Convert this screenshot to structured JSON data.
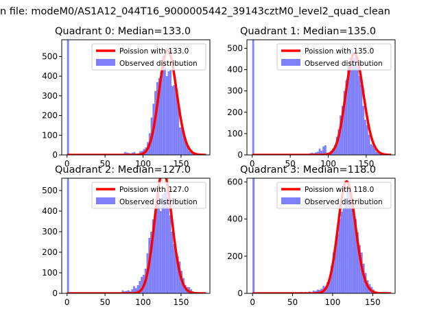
{
  "figure": {
    "suptitle": "n file: modeM0/AS1A12_044T16_9000005442_39143cztM0_level2_quad_clean"
  },
  "colors": {
    "observed": "#7f7ff7",
    "poisson": "#ff0000"
  },
  "chart_data": [
    {
      "type": "bar",
      "title": "Quadrant 0: Median=133.0",
      "median": 133.0,
      "xlim": [
        -7,
        188
      ],
      "ylim": [
        0,
        585
      ],
      "xticks": [
        0,
        50,
        100,
        150
      ],
      "yticks": [
        0,
        100,
        200,
        300,
        400,
        500
      ],
      "legend_position": "upper right",
      "series": [
        {
          "name": "Poission with 133.0",
          "kind": "line",
          "mean": 133.0
        },
        {
          "name": "Observed distribution",
          "kind": "histogram",
          "bins": [
            [
              0,
              2.5,
              585
            ],
            [
              75,
              77.5,
              15
            ],
            [
              77.5,
              80,
              12
            ],
            [
              80,
              82.5,
              10
            ],
            [
              82.5,
              85,
              8
            ],
            [
              85,
              87.5,
              12
            ],
            [
              87.5,
              90,
              15
            ],
            [
              90,
              92.5,
              5
            ],
            [
              92.5,
              95,
              8
            ],
            [
              95,
              97.5,
              18
            ],
            [
              97.5,
              100,
              20
            ],
            [
              100,
              102.5,
              30
            ],
            [
              102.5,
              105,
              38
            ],
            [
              105,
              107.5,
              65
            ],
            [
              107.5,
              110,
              110
            ],
            [
              110,
              112.5,
              190
            ],
            [
              112.5,
              115,
              260
            ],
            [
              115,
              117.5,
              325
            ],
            [
              117.5,
              120,
              370
            ],
            [
              120,
              122.5,
              390
            ],
            [
              122.5,
              125,
              420
            ],
            [
              125,
              127.5,
              505
            ],
            [
              127.5,
              130,
              470
            ],
            [
              130,
              132.5,
              400
            ],
            [
              132.5,
              135,
              425
            ],
            [
              135,
              137.5,
              430
            ],
            [
              137.5,
              140,
              350
            ],
            [
              140,
              142.5,
              355
            ],
            [
              142.5,
              145,
              340
            ],
            [
              145,
              147.5,
              250
            ],
            [
              147.5,
              150,
              140
            ],
            [
              150,
              152.5,
              150
            ],
            [
              152.5,
              155,
              100
            ],
            [
              155,
              157.5,
              75
            ],
            [
              157.5,
              160,
              45
            ],
            [
              160,
              162.5,
              20
            ],
            [
              162.5,
              165,
              15
            ],
            [
              165,
              167.5,
              10
            ],
            [
              167.5,
              170,
              8
            ],
            [
              170,
              172.5,
              5
            ]
          ]
        }
      ]
    },
    {
      "type": "bar",
      "title": "Quadrant 1: Median=135.0",
      "median": 135.0,
      "xlim": [
        -7,
        188
      ],
      "ylim": [
        0,
        540
      ],
      "xticks": [
        0,
        50,
        100,
        150
      ],
      "yticks": [
        0,
        100,
        200,
        300,
        400,
        500
      ],
      "legend_position": "upper right",
      "series": [
        {
          "name": "Poission with 135.0",
          "kind": "line",
          "mean": 135.0
        },
        {
          "name": "Observed distribution",
          "kind": "histogram",
          "bins": [
            [
              0,
              2.5,
              540
            ],
            [
              75,
              77.5,
              8
            ],
            [
              77.5,
              80,
              10
            ],
            [
              80,
              82.5,
              8
            ],
            [
              82.5,
              85,
              12
            ],
            [
              85,
              87.5,
              15
            ],
            [
              87.5,
              90,
              30
            ],
            [
              90,
              92.5,
              20
            ],
            [
              92.5,
              95,
              40
            ],
            [
              95,
              97.5,
              45
            ],
            [
              97.5,
              100,
              10
            ],
            [
              100,
              102.5,
              12
            ],
            [
              102.5,
              105,
              20
            ],
            [
              105,
              107.5,
              30
            ],
            [
              107.5,
              110,
              45
            ],
            [
              110,
              112.5,
              85
            ],
            [
              112.5,
              115,
              120
            ],
            [
              115,
              117.5,
              185
            ],
            [
              117.5,
              120,
              230
            ],
            [
              120,
              122.5,
              300
            ],
            [
              122.5,
              125,
              350
            ],
            [
              125,
              127.5,
              420
            ],
            [
              127.5,
              130,
              455
            ],
            [
              130,
              132.5,
              500
            ],
            [
              132.5,
              135,
              455
            ],
            [
              135,
              137.5,
              460
            ],
            [
              137.5,
              140,
              420
            ],
            [
              140,
              142.5,
              370
            ],
            [
              142.5,
              145,
              330
            ],
            [
              145,
              147.5,
              230
            ],
            [
              147.5,
              150,
              165
            ],
            [
              150,
              152.5,
              140
            ],
            [
              152.5,
              155,
              95
            ],
            [
              155,
              157.5,
              50
            ],
            [
              157.5,
              160,
              45
            ],
            [
              160,
              162.5,
              30
            ],
            [
              162.5,
              165,
              15
            ],
            [
              165,
              167.5,
              10
            ],
            [
              167.5,
              170,
              5
            ]
          ]
        }
      ]
    },
    {
      "type": "bar",
      "title": "Quadrant 2: Median=127.0",
      "median": 127.0,
      "xlim": [
        -7,
        188
      ],
      "ylim": [
        0,
        560
      ],
      "xticks": [
        0,
        50,
        100,
        150
      ],
      "yticks": [
        0,
        100,
        200,
        300,
        400,
        500
      ],
      "legend_position": "upper right",
      "series": [
        {
          "name": "Poission with 127.0",
          "kind": "line",
          "mean": 127.0
        },
        {
          "name": "Observed distribution",
          "kind": "histogram",
          "bins": [
            [
              0,
              2.5,
              560
            ],
            [
              72,
              74.5,
              15
            ],
            [
              74.5,
              77,
              10
            ],
            [
              77,
              79.5,
              12
            ],
            [
              79.5,
              82,
              15
            ],
            [
              82,
              84.5,
              10
            ],
            [
              84.5,
              87,
              20
            ],
            [
              87,
              89.5,
              35
            ],
            [
              89.5,
              92,
              25
            ],
            [
              92,
              94.5,
              40
            ],
            [
              94.5,
              97,
              60
            ],
            [
              97,
              99.5,
              80
            ],
            [
              99.5,
              102,
              90
            ],
            [
              102,
              104.5,
              120
            ],
            [
              104.5,
              107,
              195
            ],
            [
              107,
              109.5,
              270
            ],
            [
              109.5,
              112,
              300
            ],
            [
              112,
              114.5,
              360
            ],
            [
              114.5,
              117,
              385
            ],
            [
              117,
              119.5,
              430
            ],
            [
              119.5,
              122,
              480
            ],
            [
              122,
              124.5,
              400
            ],
            [
              124.5,
              127,
              480
            ],
            [
              127,
              129.5,
              490
            ],
            [
              129.5,
              132,
              500
            ],
            [
              132,
              134.5,
              420
            ],
            [
              134.5,
              137,
              380
            ],
            [
              137,
              139.5,
              300
            ],
            [
              139.5,
              142,
              240
            ],
            [
              142,
              144.5,
              200
            ],
            [
              144.5,
              147,
              180
            ],
            [
              147,
              149.5,
              155
            ],
            [
              149.5,
              152,
              110
            ],
            [
              152,
              154.5,
              75
            ],
            [
              154.5,
              157,
              40
            ],
            [
              157,
              159.5,
              30
            ],
            [
              159.5,
              162,
              30
            ],
            [
              162,
              164.5,
              20
            ],
            [
              164.5,
              167,
              10
            ],
            [
              167,
              169.5,
              5
            ]
          ]
        }
      ]
    },
    {
      "type": "bar",
      "title": "Quadrant 3: Median=118.0",
      "median": 118.0,
      "xlim": [
        -7,
        178
      ],
      "ylim": [
        0,
        620
      ],
      "xticks": [
        0,
        50,
        100,
        150
      ],
      "yticks": [
        0,
        200,
        400,
        600
      ],
      "legend_position": "upper right",
      "series": [
        {
          "name": "Poission with 118.0",
          "kind": "line",
          "mean": 118.0
        },
        {
          "name": "Observed distribution",
          "kind": "histogram",
          "bins": [
            [
              0,
              2.5,
              620
            ],
            [
              45,
              47.5,
              5
            ],
            [
              52,
              54.5,
              5
            ],
            [
              60,
              62.5,
              8
            ],
            [
              65,
              67.5,
              8
            ],
            [
              70,
              72.5,
              10
            ],
            [
              75,
              77.5,
              15
            ],
            [
              77.5,
              80,
              12
            ],
            [
              80,
              82.5,
              20
            ],
            [
              82.5,
              85,
              18
            ],
            [
              85,
              87.5,
              25
            ],
            [
              87.5,
              90,
              40
            ],
            [
              90,
              92.5,
              35
            ],
            [
              92.5,
              95,
              60
            ],
            [
              95,
              97.5,
              80
            ],
            [
              97.5,
              100,
              150
            ],
            [
              100,
              102.5,
              220
            ],
            [
              102.5,
              105,
              250
            ],
            [
              105,
              107.5,
              320
            ],
            [
              107.5,
              110,
              400
            ],
            [
              110,
              112.5,
              440
            ],
            [
              112.5,
              115,
              460
            ],
            [
              115,
              117.5,
              480
            ],
            [
              117.5,
              120,
              560
            ],
            [
              120,
              122.5,
              570
            ],
            [
              122.5,
              125,
              510
            ],
            [
              125,
              127.5,
              460
            ],
            [
              127.5,
              130,
              400
            ],
            [
              130,
              132.5,
              330
            ],
            [
              132.5,
              135,
              260
            ],
            [
              135,
              137.5,
              220
            ],
            [
              137.5,
              140,
              160
            ],
            [
              140,
              142.5,
              110
            ],
            [
              142.5,
              145,
              70
            ],
            [
              145,
              147.5,
              50
            ],
            [
              147.5,
              150,
              35
            ],
            [
              150,
              152.5,
              20
            ],
            [
              152.5,
              155,
              10
            ],
            [
              155,
              157.5,
              5
            ]
          ]
        }
      ]
    }
  ]
}
